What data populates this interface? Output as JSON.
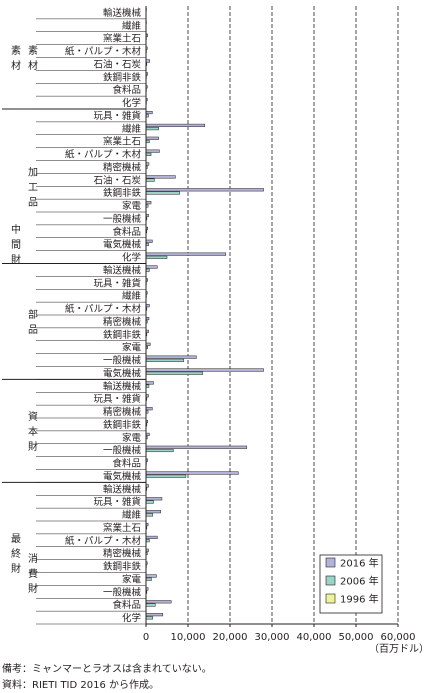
{
  "chart_data": {
    "type": "bar",
    "orientation": "horizontal",
    "xlim": [
      0,
      60000
    ],
    "xticks": [
      "0",
      "10,000",
      "20,000",
      "30,000",
      "40,000",
      "50,000",
      "60,000"
    ],
    "unit": "（百万ドル）",
    "grid": "vertical-dashed",
    "legend_placement": "bottom-right",
    "series": [
      {
        "name": "2016 年",
        "color": "#b3b3d9"
      },
      {
        "name": "2006 年",
        "color": "#9bd3c9"
      },
      {
        "name": "1996 年",
        "color": "#eef29a"
      }
    ],
    "categories": [
      {
        "label": "輸送機械",
        "values": [
          100,
          30,
          0
        ]
      },
      {
        "label": "繊維",
        "values": [
          100,
          20,
          0
        ]
      },
      {
        "label": "窯業土石",
        "values": [
          400,
          100,
          0
        ]
      },
      {
        "label": "紙・パルプ・木材",
        "values": [
          300,
          100,
          0
        ]
      },
      {
        "label": "石油・石炭",
        "values": [
          900,
          200,
          0
        ]
      },
      {
        "label": "鉄鋼非鉄",
        "values": [
          400,
          100,
          0
        ]
      },
      {
        "label": "食料品",
        "values": [
          300,
          100,
          0
        ]
      },
      {
        "label": "化学",
        "values": [
          300,
          100,
          0
        ]
      },
      {
        "label": "玩具・雑貨",
        "values": [
          1500,
          600,
          0
        ]
      },
      {
        "label": "繊維",
        "values": [
          14000,
          3000,
          0
        ]
      },
      {
        "label": "窯業土石",
        "values": [
          3000,
          800,
          0
        ]
      },
      {
        "label": "紙・パルプ・木材",
        "values": [
          3200,
          1200,
          0
        ]
      },
      {
        "label": "精密機械",
        "values": [
          700,
          300,
          0
        ]
      },
      {
        "label": "石油・石炭",
        "values": [
          7000,
          2000,
          0
        ]
      },
      {
        "label": "鉄鋼非鉄",
        "values": [
          28000,
          8000,
          0
        ]
      },
      {
        "label": "家電",
        "values": [
          1200,
          500,
          0
        ]
      },
      {
        "label": "一般機械",
        "values": [
          600,
          200,
          0
        ]
      },
      {
        "label": "食料品",
        "values": [
          400,
          200,
          0
        ]
      },
      {
        "label": "電気機械",
        "values": [
          1500,
          600,
          0
        ]
      },
      {
        "label": "化学",
        "values": [
          19000,
          5000,
          0
        ]
      },
      {
        "label": "輸送機械",
        "values": [
          2700,
          800,
          0
        ]
      },
      {
        "label": "玩具・雑貨",
        "values": [
          400,
          100,
          0
        ]
      },
      {
        "label": "繊維",
        "values": [
          300,
          100,
          0
        ]
      },
      {
        "label": "紙・パルプ・木材",
        "values": [
          800,
          200,
          0
        ]
      },
      {
        "label": "精密機械",
        "values": [
          700,
          300,
          0
        ]
      },
      {
        "label": "鉄鋼非鉄",
        "values": [
          600,
          200,
          0
        ]
      },
      {
        "label": "家電",
        "values": [
          1000,
          400,
          0
        ]
      },
      {
        "label": "一般機械",
        "values": [
          12000,
          9000,
          0
        ]
      },
      {
        "label": "電気機械",
        "values": [
          28000,
          13500,
          0
        ]
      },
      {
        "label": "輸送機械",
        "values": [
          1800,
          700,
          0
        ]
      },
      {
        "label": "玩具・雑貨",
        "values": [
          600,
          200,
          0
        ]
      },
      {
        "label": "精密機械",
        "values": [
          1500,
          500,
          0
        ]
      },
      {
        "label": "鉄鋼非鉄",
        "values": [
          400,
          200,
          0
        ]
      },
      {
        "label": "家電",
        "values": [
          800,
          300,
          0
        ]
      },
      {
        "label": "一般機械",
        "values": [
          24000,
          6500,
          0
        ]
      },
      {
        "label": "食料品",
        "values": [
          400,
          100,
          0
        ]
      },
      {
        "label": "電気機械",
        "values": [
          22000,
          9500,
          0
        ]
      },
      {
        "label": "輸送機械",
        "values": [
          600,
          200,
          0
        ]
      },
      {
        "label": "玩具・雑貨",
        "values": [
          3800,
          1800,
          0
        ]
      },
      {
        "label": "繊維",
        "values": [
          3500,
          1600,
          0
        ]
      },
      {
        "label": "窯業土石",
        "values": [
          500,
          200,
          0
        ]
      },
      {
        "label": "紙・パルプ・木材",
        "values": [
          2700,
          800,
          0
        ]
      },
      {
        "label": "精密機械",
        "values": [
          600,
          300,
          0
        ]
      },
      {
        "label": "鉄鋼非鉄",
        "values": [
          300,
          100,
          0
        ]
      },
      {
        "label": "家電",
        "values": [
          2500,
          1300,
          0
        ]
      },
      {
        "label": "一般機械",
        "values": [
          500,
          200,
          0
        ]
      },
      {
        "label": "食料品",
        "values": [
          6000,
          2200,
          0
        ]
      },
      {
        "label": "化学",
        "values": [
          4000,
          1600,
          0
        ]
      }
    ],
    "groups": [
      {
        "label": "素材",
        "level": "major"
      },
      {
        "label": "素材",
        "level": "sub"
      },
      {
        "label": "中間財",
        "level": "major"
      },
      {
        "label": "加工品",
        "level": "sub"
      },
      {
        "label": "部品",
        "level": "sub"
      },
      {
        "label": "資本財",
        "level": "major"
      },
      {
        "label": "最終財",
        "level": "major"
      },
      {
        "label": "消費財",
        "level": "sub"
      }
    ]
  },
  "notes": {
    "line1": "備考：ミャンマーとラオスは含まれていない。",
    "line2": "資料：RIETI TID 2016 から作成。"
  }
}
